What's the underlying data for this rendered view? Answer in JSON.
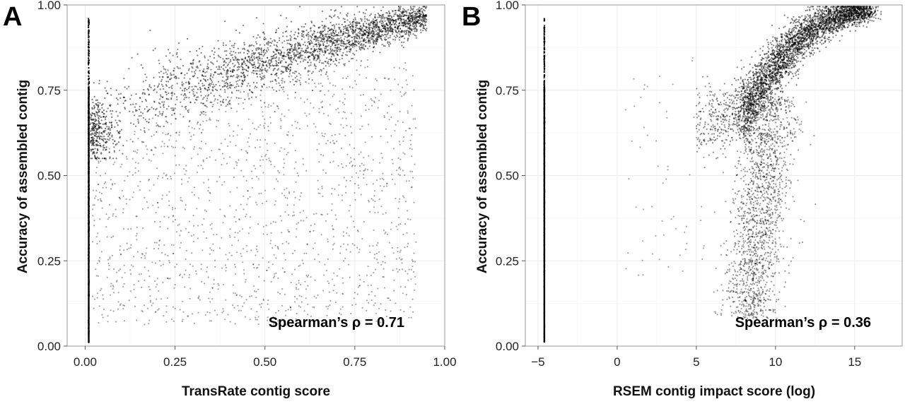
{
  "chart_data": [
    {
      "panel": "A",
      "type": "scatter",
      "xlabel": "TransRate contig score",
      "ylabel": "Accuracy of assembled contig",
      "xlim": [
        -0.05,
        1.0
      ],
      "ylim": [
        0.0,
        1.0
      ],
      "xticks": [
        "0.00",
        "0.25",
        "0.50",
        "0.75",
        "1.00"
      ],
      "yticks": [
        "0.00",
        "0.25",
        "0.50",
        "0.75",
        "1.00"
      ],
      "annotation": "Spearman’s ρ = 0.71",
      "grid": true,
      "point_color": "#000000",
      "points": [
        [
          0.01,
          0.02
        ],
        [
          0.01,
          0.15
        ],
        [
          0.01,
          0.3
        ],
        [
          0.01,
          0.45
        ],
        [
          0.01,
          0.6
        ],
        [
          0.01,
          0.7
        ],
        [
          0.01,
          0.8
        ],
        [
          0.01,
          0.9
        ],
        [
          0.02,
          0.58
        ],
        [
          0.03,
          0.62
        ],
        [
          0.05,
          0.66
        ],
        [
          0.08,
          0.68
        ],
        [
          0.1,
          0.71
        ],
        [
          0.15,
          0.74
        ],
        [
          0.2,
          0.77
        ],
        [
          0.3,
          0.82
        ],
        [
          0.4,
          0.85
        ],
        [
          0.5,
          0.88
        ],
        [
          0.6,
          0.91
        ],
        [
          0.7,
          0.93
        ],
        [
          0.8,
          0.95
        ],
        [
          0.9,
          0.97
        ],
        [
          0.95,
          0.98
        ],
        [
          0.25,
          0.35
        ],
        [
          0.4,
          0.3
        ],
        [
          0.55,
          0.4
        ],
        [
          0.7,
          0.55
        ],
        [
          0.85,
          0.5
        ],
        [
          0.1,
          0.2
        ],
        [
          0.3,
          0.15
        ],
        [
          0.6,
          0.2
        ]
      ]
    },
    {
      "panel": "B",
      "type": "scatter",
      "xlabel": "RSEM contig impact score (log)",
      "ylabel": "Accuracy of assembled contig",
      "xlim": [
        -5.8,
        18.0
      ],
      "ylim": [
        0.0,
        1.0
      ],
      "xticks": [
        "−5",
        "0",
        "5",
        "10",
        "15"
      ],
      "yticks": [
        "0.00",
        "0.25",
        "0.50",
        "0.75",
        "1.00"
      ],
      "annotation": "Spearman’s ρ = 0.36",
      "grid": true,
      "point_color": "#000000",
      "points": [
        [
          -4.6,
          0.02
        ],
        [
          -4.6,
          0.3
        ],
        [
          -4.6,
          0.6
        ],
        [
          -4.6,
          0.75
        ],
        [
          -4.6,
          0.95
        ],
        [
          6.0,
          0.64
        ],
        [
          7.5,
          0.68
        ],
        [
          8.5,
          0.75
        ],
        [
          9.5,
          0.82
        ],
        [
          10.5,
          0.88
        ],
        [
          11.5,
          0.93
        ],
        [
          12.5,
          0.96
        ],
        [
          13.5,
          0.97
        ],
        [
          15.0,
          0.98
        ],
        [
          8.0,
          0.3
        ],
        [
          8.5,
          0.15
        ],
        [
          9.0,
          0.45
        ],
        [
          9.5,
          0.6
        ],
        [
          10.0,
          0.25
        ],
        [
          11.0,
          0.55
        ],
        [
          7.5,
          0.4
        ]
      ]
    }
  ]
}
